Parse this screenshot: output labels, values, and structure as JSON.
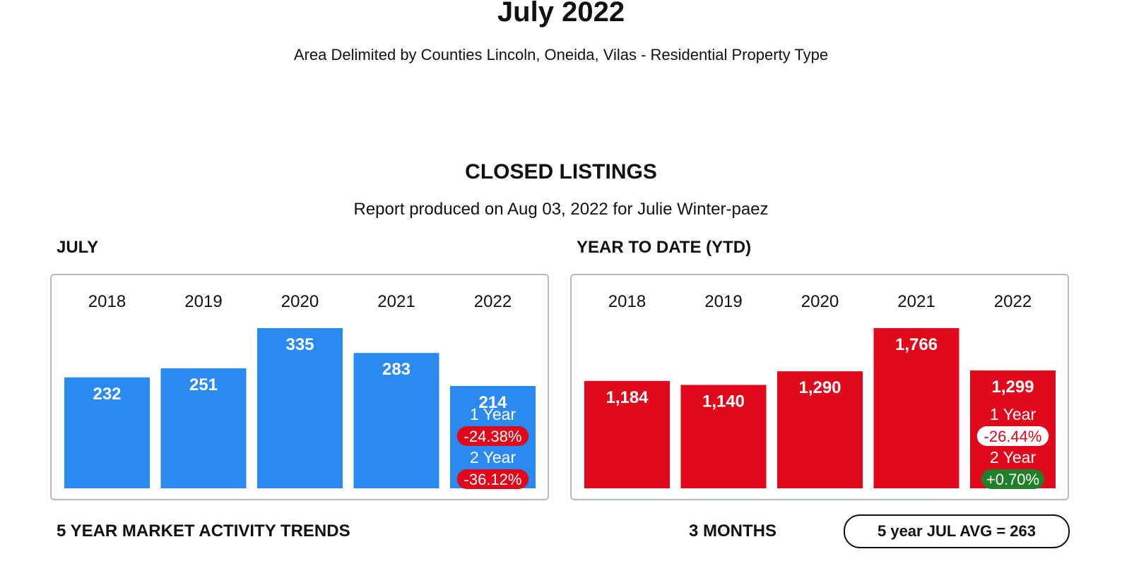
{
  "header": {
    "title": "July 2022",
    "subtitle": "Area Delimited by Counties Lincoln, Oneida, Vilas - Residential Property Type",
    "section_title": "CLOSED LISTINGS",
    "report_note": "Report produced on Aug 03, 2022 for Julie Winter-paez"
  },
  "colors": {
    "month_bar": "#2b8af0",
    "ytd_bar": "#e0091b",
    "negative_badge": "#e0091b",
    "positive_badge": "#20802a",
    "badge_white": "#ffffff"
  },
  "chart_data": [
    {
      "type": "bar",
      "title": "JULY",
      "categories": [
        "2018",
        "2019",
        "2020",
        "2021",
        "2022"
      ],
      "values": [
        232,
        251,
        335,
        283,
        214
      ],
      "value_labels": [
        "232",
        "251",
        "335",
        "283",
        "214"
      ],
      "ylim": [
        0,
        335
      ],
      "changes": [
        {
          "label": "1 Year",
          "value": "-24.38%",
          "style": "negative"
        },
        {
          "label": "2 Year",
          "value": "-36.12%",
          "style": "negative"
        }
      ]
    },
    {
      "type": "bar",
      "title": "YEAR TO DATE (YTD)",
      "categories": [
        "2018",
        "2019",
        "2020",
        "2021",
        "2022"
      ],
      "values": [
        1184,
        1140,
        1290,
        1766,
        1299
      ],
      "value_labels": [
        "1,184",
        "1,140",
        "1,290",
        "1,766",
        "1,299"
      ],
      "ylim": [
        0,
        1766
      ],
      "changes": [
        {
          "label": "1 Year",
          "value": "-26.44%",
          "style": "white"
        },
        {
          "label": "2 Year",
          "value": "+0.70%",
          "style": "positive"
        }
      ]
    }
  ],
  "footer": {
    "trends_label": "5 YEAR MARKET ACTIVITY TRENDS",
    "period_label": "3 MONTHS",
    "avg_label": "5 year JUL AVG = 263"
  }
}
